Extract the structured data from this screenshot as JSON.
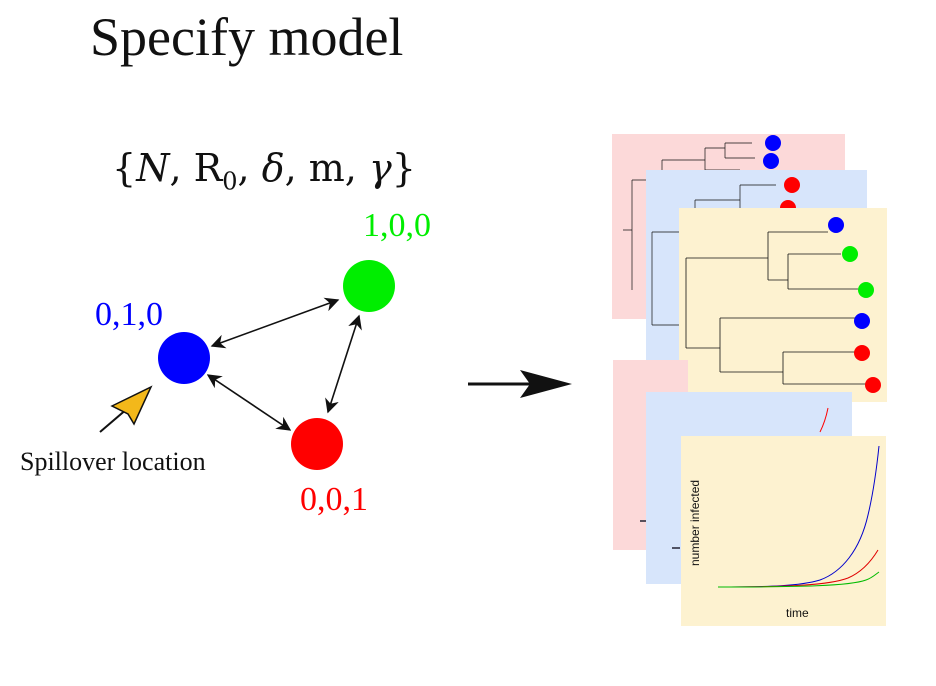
{
  "title": "Specify model",
  "parameters": {
    "open": "{",
    "N": "N",
    "R": "R",
    "R_sub": "0",
    "delta": "δ",
    "m": "m",
    "gamma": "γ",
    "close": "}",
    "sep": ", "
  },
  "nodes": [
    {
      "id": "green",
      "label": "1,0,0",
      "color": "#00ee00"
    },
    {
      "id": "blue",
      "label": "0,1,0",
      "color": "#0000ff"
    },
    {
      "id": "red",
      "label": "0,0,1",
      "color": "#ff0000"
    }
  ],
  "spillover_label": "Spillover location",
  "colors": {
    "panel_pink": "#fcd9d9",
    "panel_blue": "#d7e5fb",
    "panel_yellow": "#fdf2d0",
    "spill_arrow": "#f3b81a"
  },
  "output_plot": {
    "ylabel": "number infected",
    "xlabel": "time"
  }
}
